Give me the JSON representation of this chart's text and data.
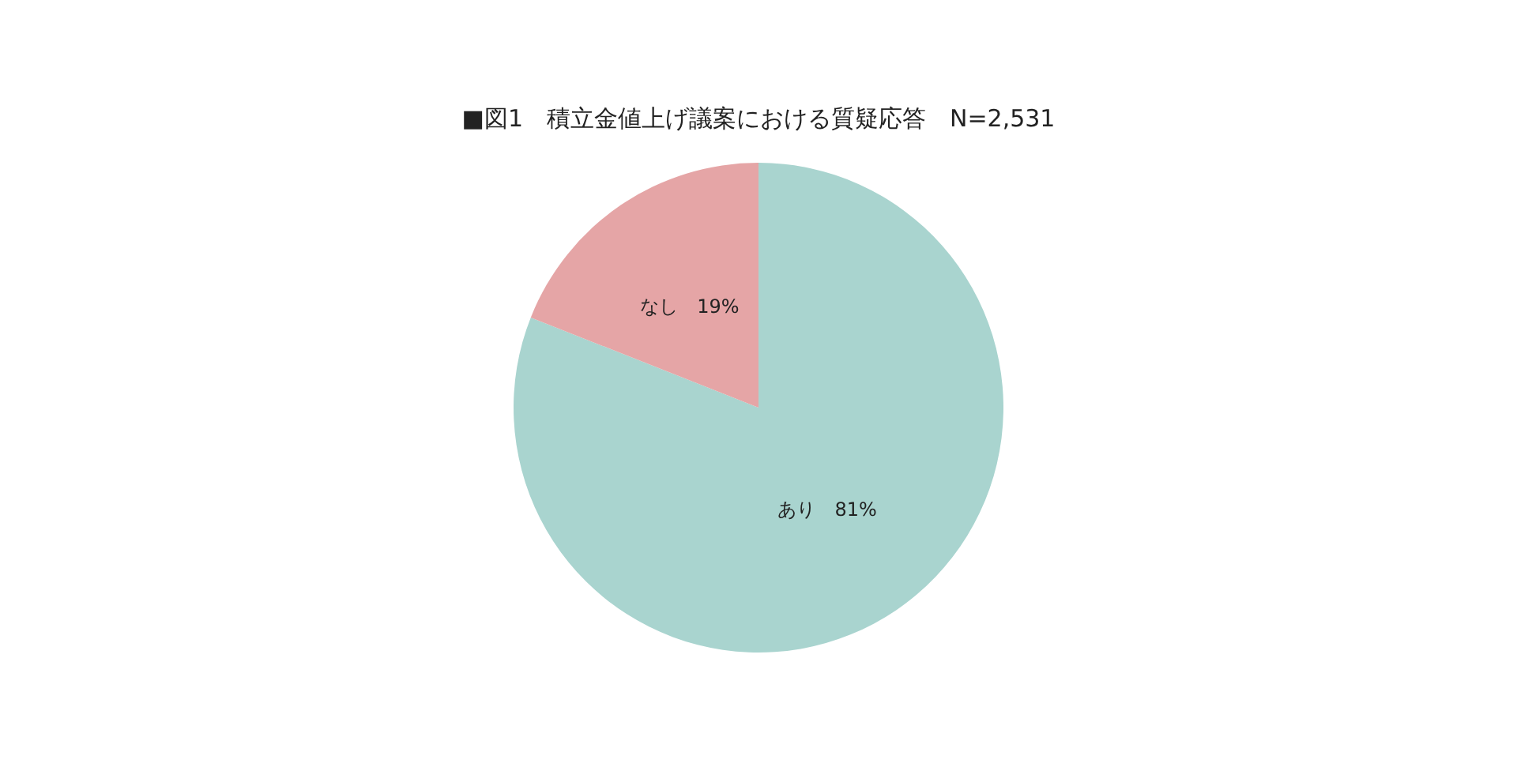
{
  "chart_data": {
    "type": "pie",
    "title": "■図1　積立金値上げ議案における質疑応答　N=2,531",
    "categories": [
      "あり",
      "なし"
    ],
    "values": [
      81,
      19
    ],
    "value_labels": [
      "81%",
      "19%"
    ],
    "colors": [
      "#a9d4cf",
      "#e5a5a6"
    ]
  }
}
